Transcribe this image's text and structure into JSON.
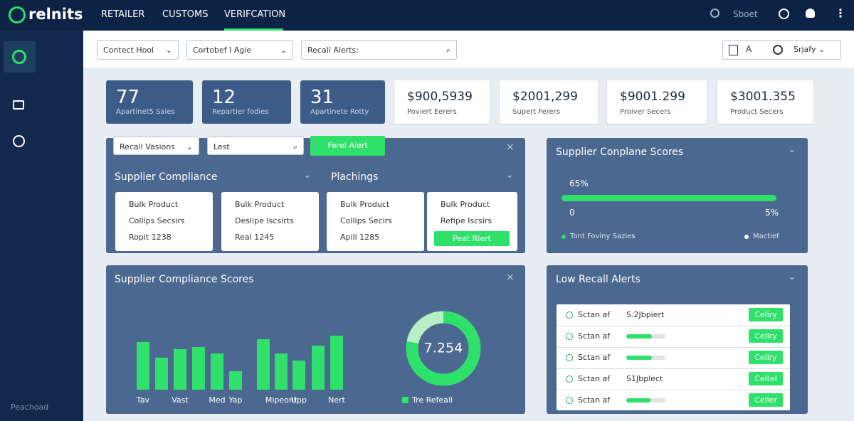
{
  "nav": {
    "logo": "relnits",
    "tabs": [
      "RETAILER",
      "CUSTOMS",
      "VERIFCATION"
    ],
    "search": "Sboet"
  },
  "sidebar": {
    "footer": "Peachoad"
  },
  "toolbar": {
    "filters": [
      "Contect Hool",
      "Cortobef I Agle"
    ],
    "search": "Recall Alerts:",
    "view": "A",
    "sort": "Srjafy"
  },
  "kpis": [
    {
      "value": 77,
      "label": "Apartinet5 Sales"
    },
    {
      "value": 12,
      "label": "Repartier fodies"
    },
    {
      "value": 31,
      "label": "Apartinete Rotty"
    },
    {
      "value": "$900,5939",
      "label": "Poviert Eerers"
    },
    {
      "value": "$2001,299",
      "label": "Supert Ferers"
    },
    {
      "value": "$9001.299",
      "label": "Proiver Secers"
    },
    {
      "value": "$3001.355",
      "label": "Product Secers"
    }
  ],
  "recall_panel": {
    "filter": "Recall Vasions",
    "search": "Lest",
    "button": "Ferel Alert",
    "sections": [
      "Supplier Compliance",
      "Plachings"
    ],
    "cards": [
      {
        "lines": [
          "Bulk Product",
          "Collips Secsirs",
          "Ropit 1238"
        ]
      },
      {
        "lines": [
          "Bulk Product",
          "Deslipe Iscsirts",
          "Real 1245"
        ]
      },
      {
        "lines": [
          "Bulk Product",
          "Collips Secirs",
          "Apill 1285"
        ]
      },
      {
        "lines": [
          "Bulk Product",
          "Refipe Iscsirs"
        ],
        "button": "Peat Rlert"
      }
    ]
  },
  "score_panel": {
    "title": "Supplier Conplane Scores",
    "progress_label": "65%",
    "min_label": "0",
    "max_label": "5%",
    "legend": [
      "Tont Foviny Sazies",
      "Mactief"
    ]
  },
  "chart_panel": {
    "title": "Supplier Compliance Scores"
  },
  "chart_data": [
    {
      "type": "bar",
      "categories": [
        "Tav",
        null,
        "Vast",
        null,
        "Med",
        "Yap",
        null,
        "Mipeont",
        "Upp",
        null,
        "Nert"
      ],
      "values": [
        67,
        45,
        57,
        60,
        51,
        26,
        71,
        51,
        41,
        62,
        76
      ],
      "color": "#2fe06a",
      "ylim": [
        0,
        80
      ]
    },
    {
      "type": "donut",
      "center_label": "7.254",
      "legend": "Tre Refeall",
      "values": [
        78,
        22
      ],
      "colors": [
        "#2fe06a",
        "#b8f0c6"
      ]
    }
  ],
  "alerts_panel": {
    "title": "Low Recall Alerts",
    "rows": [
      {
        "label": "Sctan af",
        "detail": "S.2Jbpiert",
        "action": "Celiry"
      },
      {
        "label": "Sctan af",
        "progress": 65,
        "action": "Cellry"
      },
      {
        "label": "Sctan af",
        "progress": 65,
        "action": "Cellry"
      },
      {
        "label": "Sctan af",
        "detail": "S1Jbplect",
        "action": "Celtel"
      },
      {
        "label": "Sctan af",
        "progress": 62,
        "action": "Celler"
      }
    ]
  }
}
